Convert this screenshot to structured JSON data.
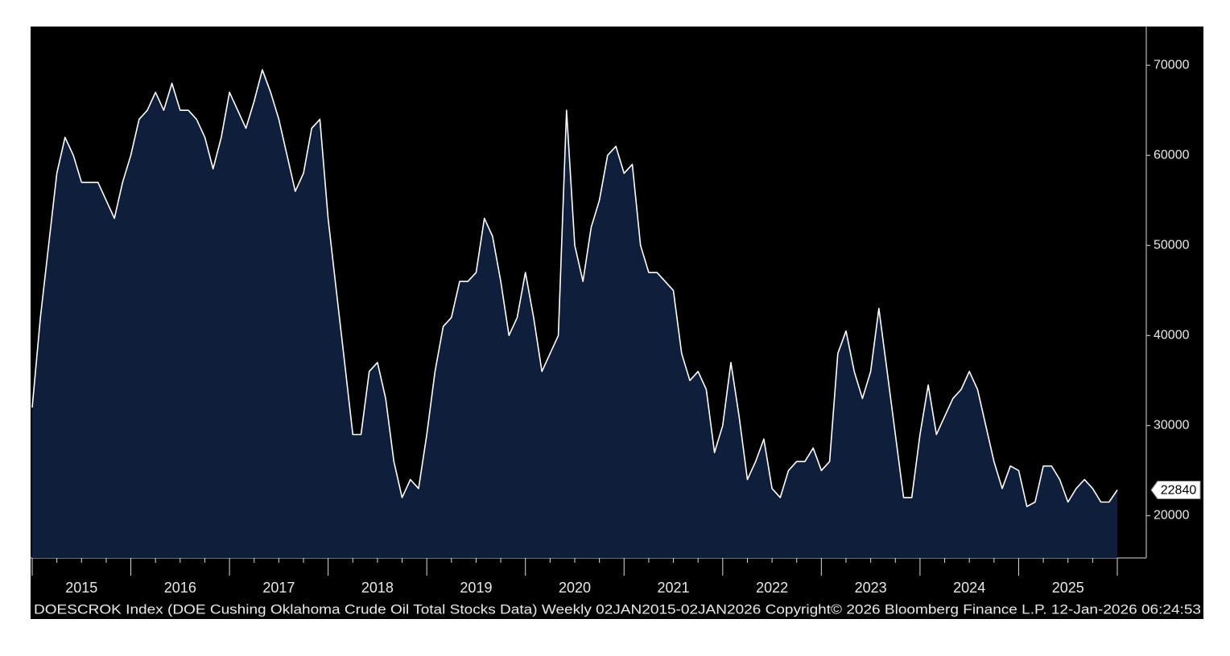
{
  "chart_data": {
    "type": "area",
    "footer": "DOESCROK Index (DOE Cushing Oklahoma Crude Oil Total Stocks Data) Weekly 02JAN2015-02JAN2026  Copyright© 2026 Bloomberg Finance L.P.  12-Jan-2026 06:24:53",
    "categories": [
      null,
      null,
      null,
      null,
      null,
      null,
      "2015",
      null,
      null,
      null,
      null,
      null,
      null,
      null,
      null,
      null,
      null,
      null,
      "2016",
      null,
      null,
      null,
      null,
      null,
      null,
      null,
      null,
      null,
      null,
      null,
      "2017",
      null,
      null,
      null,
      null,
      null,
      null,
      null,
      null,
      null,
      null,
      null,
      "2018",
      null,
      null,
      null,
      null,
      null,
      null,
      null,
      null,
      null,
      null,
      null,
      "2019",
      null,
      null,
      null,
      null,
      null,
      null,
      null,
      null,
      null,
      null,
      null,
      "2020",
      null,
      null,
      null,
      null,
      null,
      null,
      null,
      null,
      null,
      null,
      null,
      "2021",
      null,
      null,
      null,
      null,
      null,
      null,
      null,
      null,
      null,
      null,
      null,
      "2022",
      null,
      null,
      null,
      null,
      null,
      null,
      null,
      null,
      null,
      null,
      null,
      "2023",
      null,
      null,
      null,
      null,
      null,
      null,
      null,
      null,
      null,
      null,
      null,
      "2024",
      null,
      null,
      null,
      null,
      null,
      null,
      null,
      null,
      null,
      null,
      null,
      "2025",
      null,
      null,
      null,
      null,
      null,
      null
    ],
    "values": [
      32000,
      42000,
      50000,
      58000,
      62000,
      60000,
      57000,
      57000,
      57000,
      55000,
      53000,
      57000,
      60000,
      64000,
      65000,
      67000,
      65000,
      68000,
      65000,
      65000,
      64000,
      62000,
      58500,
      62000,
      67000,
      65000,
      63000,
      66000,
      69500,
      67000,
      64000,
      60000,
      56000,
      58000,
      63000,
      64000,
      53000,
      45000,
      37000,
      29000,
      29000,
      36000,
      37000,
      33000,
      26000,
      22000,
      24000,
      23000,
      29000,
      36000,
      41000,
      42000,
      46000,
      46000,
      47000,
      53000,
      51000,
      46000,
      40000,
      42000,
      47000,
      42000,
      36000,
      38000,
      40000,
      65000,
      50000,
      46000,
      52000,
      55000,
      60000,
      61000,
      58000,
      59000,
      50000,
      47000,
      47000,
      46000,
      45000,
      38000,
      35000,
      36000,
      34000,
      27000,
      30000,
      37000,
      31000,
      24000,
      26000,
      28500,
      23000,
      22000,
      25000,
      26000,
      26000,
      27500,
      25000,
      26000,
      38000,
      40500,
      36000,
      33000,
      36000,
      43000,
      36000,
      29000,
      22000,
      22000,
      29000,
      34500,
      29000,
      31000,
      33000,
      34000,
      36000,
      34000,
      30000,
      26000,
      23000,
      25500,
      25000,
      21000,
      21500,
      25500,
      25500,
      24000,
      21500,
      23000,
      24000,
      23000,
      21500,
      21500,
      22840
    ],
    "line_color": "#ffffff",
    "fill_color": "#0f1e3a",
    "ylim": [
      15300,
      74300
    ],
    "yticks": [
      20000,
      30000,
      40000,
      50000,
      60000,
      70000
    ],
    "last_value_label": true
  }
}
